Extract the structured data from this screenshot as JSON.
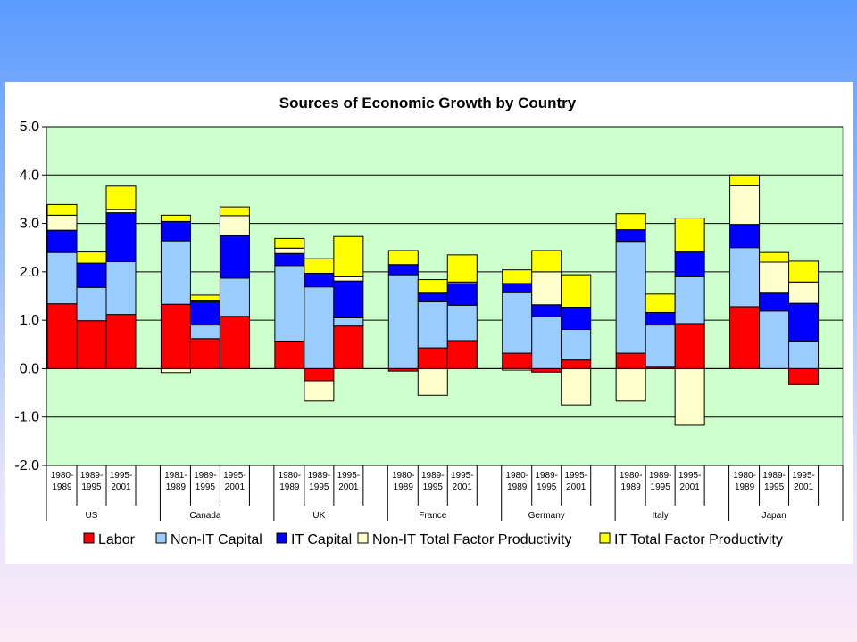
{
  "chart_data": {
    "type": "bar",
    "stacked": true,
    "title": "Sources of Economic Growth by Country",
    "xlabel": "",
    "ylabel": "",
    "ylim": [
      -2.0,
      5.0
    ],
    "yticks": [
      "5.0",
      "4.0",
      "3.0",
      "2.0",
      "1.0",
      "0.0",
      "-1.0",
      "-2.0"
    ],
    "grid": true,
    "legend_position": "bottom",
    "colors": {
      "plot_background": "#ccffcc",
      "Labor": "#ff0000",
      "Non-IT Capital": "#99ccff",
      "IT Capital": "#0000ff",
      "Non-IT Total Factor Productivity": "#ffffcc",
      "IT Total Factor Productivity": "#ffff00"
    },
    "groups": [
      {
        "country": "US",
        "periods": [
          [
            "1980-",
            "1989"
          ],
          [
            "1989-",
            "1995"
          ],
          [
            "1995-",
            "2001"
          ]
        ]
      },
      {
        "country": "Canada",
        "periods": [
          [
            "1981-",
            "1989"
          ],
          [
            "1989-",
            "1995"
          ],
          [
            "1995-",
            "2001"
          ]
        ]
      },
      {
        "country": "UK",
        "periods": [
          [
            "1980-",
            "1989"
          ],
          [
            "1989-",
            "1995"
          ],
          [
            "1995-",
            "2001"
          ]
        ]
      },
      {
        "country": "France",
        "periods": [
          [
            "1980-",
            "1989"
          ],
          [
            "1989-",
            "1995"
          ],
          [
            "1995-",
            "2001"
          ]
        ]
      },
      {
        "country": "Germany",
        "periods": [
          [
            "1980-",
            "1989"
          ],
          [
            "1989-",
            "1995"
          ],
          [
            "1995-",
            "2001"
          ]
        ]
      },
      {
        "country": "Italy",
        "periods": [
          [
            "1980-",
            "1989"
          ],
          [
            "1989-",
            "1995"
          ],
          [
            "1995-",
            "2001"
          ]
        ]
      },
      {
        "country": "Japan",
        "periods": [
          [
            "1980-",
            "1989"
          ],
          [
            "1989-",
            "1995"
          ],
          [
            "1995-",
            "2001"
          ]
        ]
      }
    ],
    "series": [
      {
        "name": "Labor",
        "values": [
          1.34,
          0.99,
          1.12,
          1.33,
          0.62,
          1.08,
          0.57,
          -0.25,
          0.88,
          -0.05,
          0.43,
          0.58,
          0.32,
          -0.07,
          0.18,
          0.32,
          0.03,
          0.93,
          1.28,
          0.0,
          -0.33
        ]
      },
      {
        "name": "Non-IT Capital",
        "values": [
          1.06,
          0.69,
          1.09,
          1.31,
          0.28,
          0.79,
          1.56,
          1.69,
          0.17,
          1.94,
          0.95,
          0.73,
          1.25,
          1.07,
          0.63,
          2.31,
          0.87,
          0.97,
          1.22,
          1.19,
          0.57
        ]
      },
      {
        "name": "IT Capital",
        "values": [
          0.46,
          0.5,
          1.01,
          0.4,
          0.48,
          0.88,
          0.25,
          0.28,
          0.76,
          0.21,
          0.18,
          0.45,
          0.19,
          0.25,
          0.46,
          0.24,
          0.26,
          0.51,
          0.48,
          0.37,
          0.78
        ]
      },
      {
        "name": "Non-IT Total Factor Productivity",
        "values": [
          0.31,
          0.0,
          0.07,
          -0.08,
          0.02,
          0.41,
          0.11,
          -0.42,
          0.09,
          0.0,
          -0.55,
          0.03,
          -0.03,
          0.68,
          -0.75,
          -0.67,
          0.0,
          -1.17,
          0.8,
          0.64,
          0.44
        ]
      },
      {
        "name": "IT Total Factor Productivity",
        "values": [
          0.22,
          0.23,
          0.48,
          0.13,
          0.12,
          0.18,
          0.2,
          0.3,
          0.83,
          0.29,
          0.28,
          0.56,
          0.28,
          0.44,
          0.67,
          0.33,
          0.38,
          0.7,
          0.22,
          0.2,
          0.43
        ]
      }
    ]
  }
}
